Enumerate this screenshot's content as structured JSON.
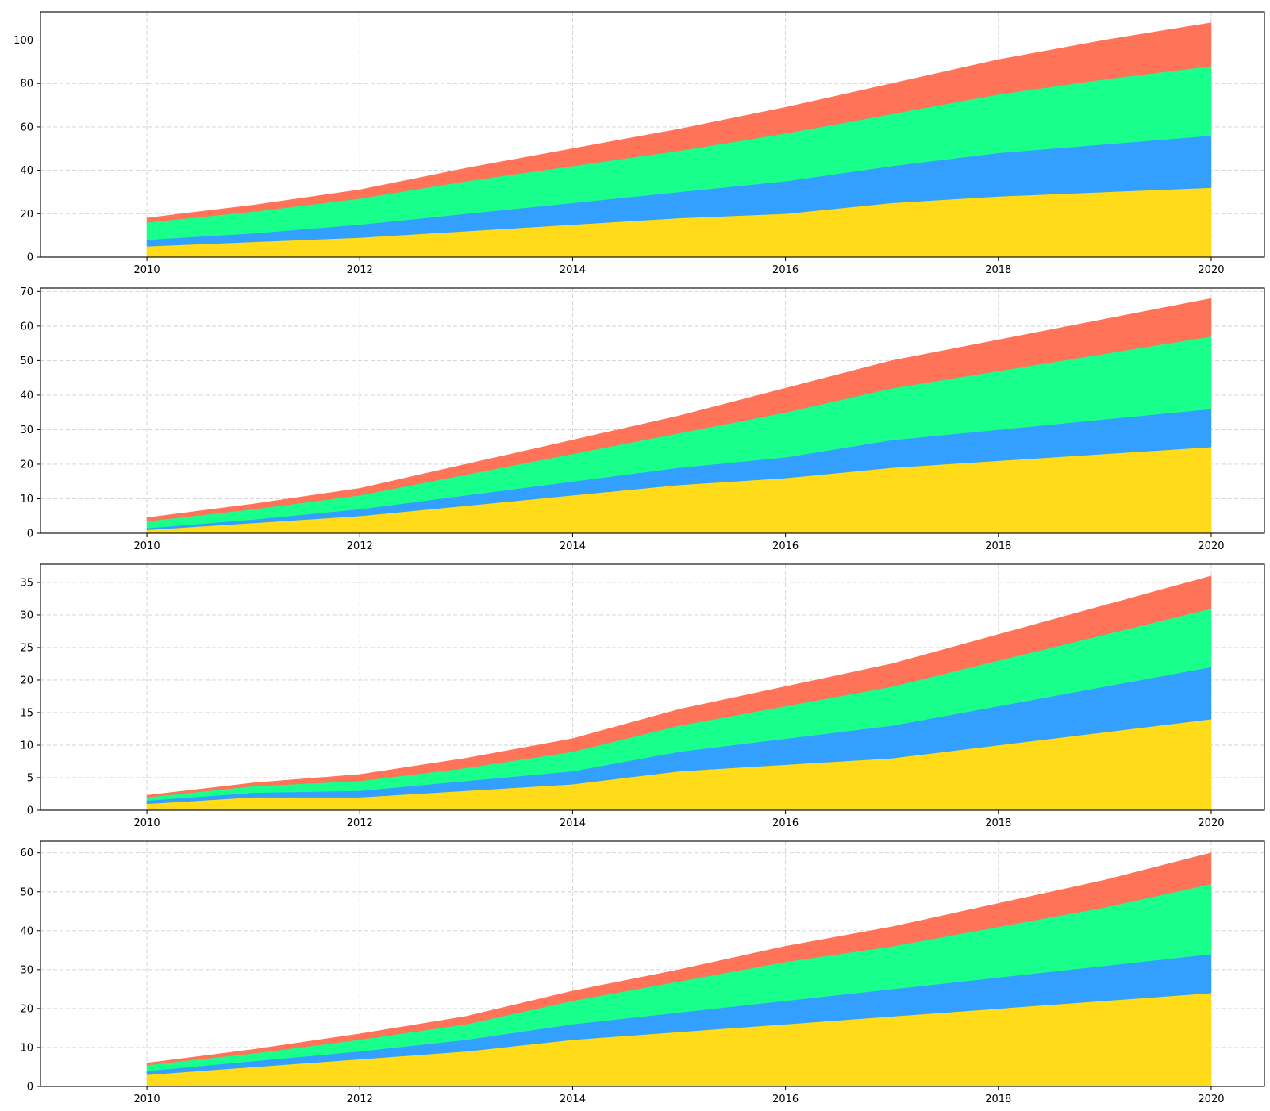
{
  "colors": {
    "layer_1": "#FFDB19",
    "layer_2": "#339FFF",
    "layer_3": "#19FF8C",
    "layer_4": "#FF7358",
    "grid": "#d0d0d0",
    "axes": "#000000",
    "background": "#ffffff"
  },
  "chart_data": [
    {
      "type": "area",
      "stacked": true,
      "grid": true,
      "x": [
        2010,
        2011,
        2012,
        2013,
        2014,
        2015,
        2016,
        2017,
        2018,
        2019,
        2020
      ],
      "xlim": [
        2009,
        2020.5
      ],
      "x_ticks": [
        "2010",
        "2012",
        "2014",
        "2016",
        "2018",
        "2020"
      ],
      "ylim": [
        0,
        113
      ],
      "y_ticks": [
        "0",
        "20",
        "40",
        "60",
        "80",
        "100"
      ],
      "series": [
        {
          "values": [
            5,
            7,
            9,
            12,
            15,
            18,
            20,
            25,
            28,
            30,
            32
          ]
        },
        {
          "values": [
            3,
            4,
            6,
            8,
            10,
            12,
            15,
            17,
            20,
            22,
            24
          ]
        },
        {
          "values": [
            8,
            10,
            12,
            15,
            17,
            19,
            22,
            24,
            27,
            30,
            32
          ]
        },
        {
          "values": [
            2,
            3,
            4,
            6,
            8,
            10,
            12,
            14,
            16,
            18,
            20
          ]
        }
      ]
    },
    {
      "type": "area",
      "stacked": true,
      "grid": true,
      "x": [
        2010,
        2011,
        2012,
        2013,
        2014,
        2015,
        2016,
        2017,
        2018,
        2019,
        2020
      ],
      "xlim": [
        2009,
        2020.5
      ],
      "x_ticks": [
        "2010",
        "2012",
        "2014",
        "2016",
        "2018",
        "2020"
      ],
      "ylim": [
        0,
        71
      ],
      "y_ticks": [
        "0",
        "10",
        "20",
        "30",
        "40",
        "50",
        "60",
        "70"
      ],
      "series": [
        {
          "values": [
            1,
            3,
            5,
            8,
            11,
            14,
            16,
            19,
            21,
            23,
            25
          ]
        },
        {
          "values": [
            0.5,
            1,
            2,
            3,
            4,
            5,
            6,
            8,
            9,
            10,
            11
          ]
        },
        {
          "values": [
            2,
            3,
            4,
            6,
            8,
            10,
            13,
            15,
            17,
            19,
            21
          ]
        },
        {
          "values": [
            1,
            1.5,
            2,
            3,
            4,
            5,
            7,
            8,
            9,
            10,
            11
          ]
        }
      ]
    },
    {
      "type": "area",
      "stacked": true,
      "grid": true,
      "x": [
        2010,
        2011,
        2012,
        2013,
        2014,
        2015,
        2016,
        2017,
        2018,
        2019,
        2020
      ],
      "xlim": [
        2009,
        2020.5
      ],
      "x_ticks": [
        "2010",
        "2012",
        "2014",
        "2016",
        "2018",
        "2020"
      ],
      "ylim": [
        0,
        37.8
      ],
      "y_ticks": [
        "0",
        "5",
        "10",
        "15",
        "20",
        "25",
        "30",
        "35"
      ],
      "series": [
        {
          "values": [
            1,
            2,
            2,
            3,
            4,
            6,
            7,
            8,
            10,
            12,
            14
          ]
        },
        {
          "values": [
            0.5,
            0.7,
            1,
            1.5,
            2,
            3,
            4,
            5,
            6,
            7,
            8
          ]
        },
        {
          "values": [
            0.5,
            1,
            1.5,
            2,
            3,
            4,
            5,
            6,
            7,
            8,
            9
          ]
        },
        {
          "values": [
            0.3,
            0.5,
            1,
            1.5,
            2,
            2.5,
            3,
            3.5,
            4,
            4.5,
            5
          ]
        }
      ]
    },
    {
      "type": "area",
      "stacked": true,
      "grid": true,
      "x": [
        2010,
        2011,
        2012,
        2013,
        2014,
        2015,
        2016,
        2017,
        2018,
        2019,
        2020
      ],
      "xlim": [
        2009,
        2020.5
      ],
      "x_ticks": [
        "2010",
        "2012",
        "2014",
        "2016",
        "2018",
        "2020"
      ],
      "ylim": [
        0,
        63
      ],
      "y_ticks": [
        "0",
        "10",
        "20",
        "30",
        "40",
        "50",
        "60"
      ],
      "series": [
        {
          "values": [
            3,
            5,
            7,
            9,
            12,
            14,
            16,
            18,
            20,
            22,
            24
          ]
        },
        {
          "values": [
            1,
            1.5,
            2,
            3,
            4,
            5,
            6,
            7,
            8,
            9,
            10
          ]
        },
        {
          "values": [
            1.5,
            2,
            3,
            4,
            6,
            8,
            10,
            11,
            13,
            15,
            18
          ]
        },
        {
          "values": [
            0.5,
            1,
            1.5,
            2,
            2.5,
            3,
            4,
            5,
            6,
            7,
            8
          ]
        }
      ]
    }
  ]
}
